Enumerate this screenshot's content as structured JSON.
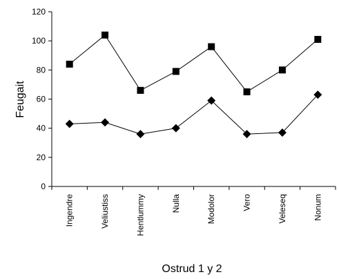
{
  "chart_data": {
    "type": "line",
    "title": "",
    "xlabel": "Ostrud 1 y 2",
    "ylabel": "Feugait",
    "ylim": [
      0,
      120
    ],
    "yticks": [
      0,
      20,
      40,
      60,
      80,
      100,
      120
    ],
    "grid": false,
    "legend": "none",
    "categories": [
      "Ingendre",
      "Veliustiss",
      "Hentlummy",
      "Nulla",
      "Modolor",
      "Vero",
      "Veleseq",
      "Nonum"
    ],
    "series": [
      {
        "marker": "square",
        "color": "#000000",
        "values": [
          84,
          104,
          66,
          79,
          96,
          65,
          80,
          101
        ]
      },
      {
        "marker": "diamond",
        "color": "#000000",
        "values": [
          43,
          44,
          36,
          40,
          59,
          36,
          37,
          63
        ]
      }
    ]
  }
}
